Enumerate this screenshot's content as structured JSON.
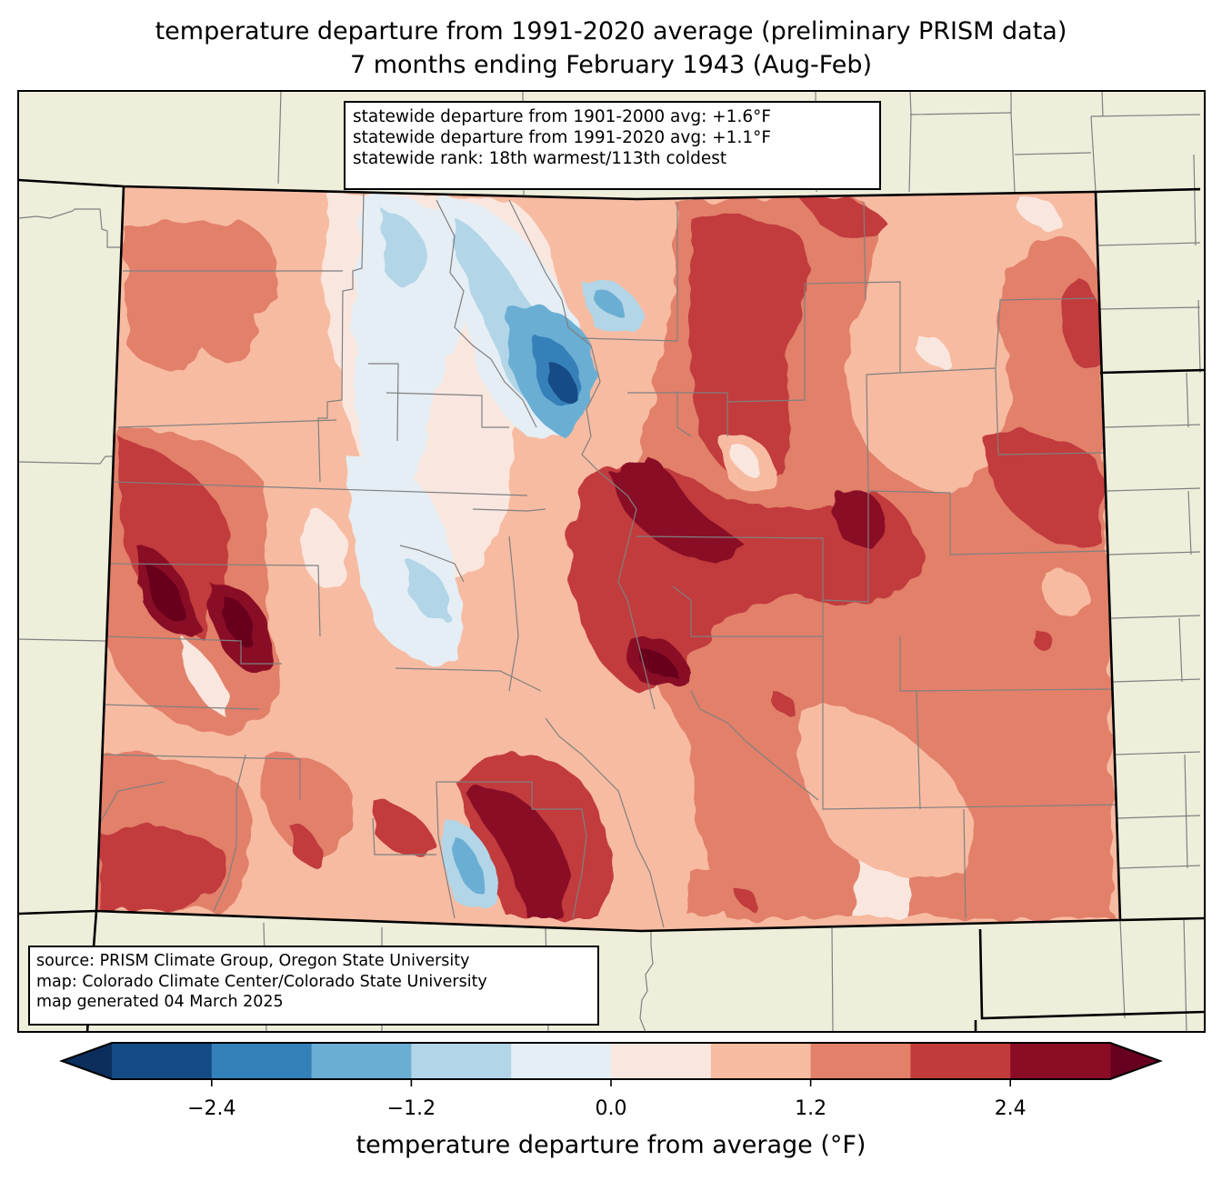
{
  "title": {
    "line1": "temperature departure from 1991-2020 average (preliminary PRISM data)",
    "line2": "7 months ending February 1943 (Aug-Feb)"
  },
  "stats_box": {
    "line1": "statewide departure from 1901-2000 avg: +1.6°F",
    "line2": "statewide departure from 1991-2020 avg: +1.1°F",
    "line3": "statewide rank: 18th warmest/113th coldest"
  },
  "source_box": {
    "line1": "source: PRISM Climate Group, Oregon State University",
    "line2": "map: Colorado Climate Center/Colorado State University",
    "line3": "map generated 04 March 2025"
  },
  "colorbar": {
    "label": "temperature departure from average (°F)",
    "range": [
      -3.0,
      3.0
    ],
    "levels": [
      -3.0,
      -2.4,
      -1.8,
      -1.2,
      -0.6,
      0.0,
      0.6,
      1.2,
      1.8,
      2.4,
      3.0
    ],
    "colors": [
      "#154b85",
      "#3480b9",
      "#6aaed3",
      "#b2d5e7",
      "#e5eef5",
      "#f9e7df",
      "#f7bba1",
      "#e2806a",
      "#c23b3c",
      "#8a0c25"
    ],
    "under_color": "#0b2e5c",
    "over_color": "#67001f",
    "extend": "both",
    "ticks": [
      {
        "value": -2.4,
        "label": "−2.4"
      },
      {
        "value": -1.2,
        "label": "−1.2"
      },
      {
        "value": 0.0,
        "label": "0.0"
      },
      {
        "value": 1.2,
        "label": "1.2"
      },
      {
        "value": 2.4,
        "label": "2.4"
      }
    ]
  },
  "map_colors": {
    "land": "#efeedb",
    "county_line": "#808080",
    "state_line": "#000000"
  }
}
